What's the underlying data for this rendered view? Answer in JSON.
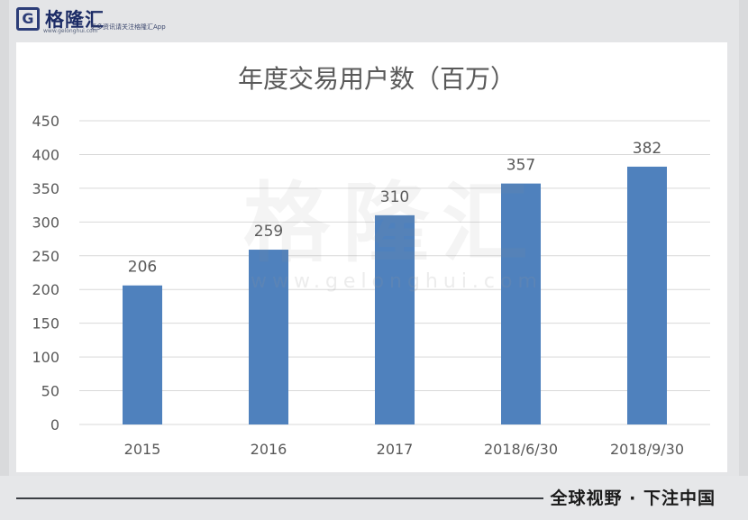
{
  "header": {
    "logo_mark": "G",
    "logo_name": "格隆汇",
    "logo_url": "www.gelonghui.com",
    "logo_tagline": "更多资讯请关注格隆汇App"
  },
  "watermark": {
    "name": "格隆汇",
    "url": "www.gelonghui.com"
  },
  "footer": {
    "text": "全球视野 · 下注中国"
  },
  "colors": {
    "bar": "#4f81bd",
    "grid": "#d9d9d9",
    "axis_text": "#595959",
    "title": "#595959"
  },
  "chart_data": {
    "type": "bar",
    "title": "年度交易用户数（百万）",
    "categories": [
      "2015",
      "2016",
      "2017",
      "2018/6/30",
      "2018/9/30"
    ],
    "values": [
      206,
      259,
      310,
      357,
      382
    ],
    "data_labels": [
      "206",
      "259",
      "310",
      "357",
      "382"
    ],
    "ylim": [
      0,
      450
    ],
    "yticks": [
      0,
      50,
      100,
      150,
      200,
      250,
      300,
      350,
      400,
      450
    ],
    "xlabel": "",
    "ylabel": "",
    "grid": true,
    "legend": "none"
  }
}
